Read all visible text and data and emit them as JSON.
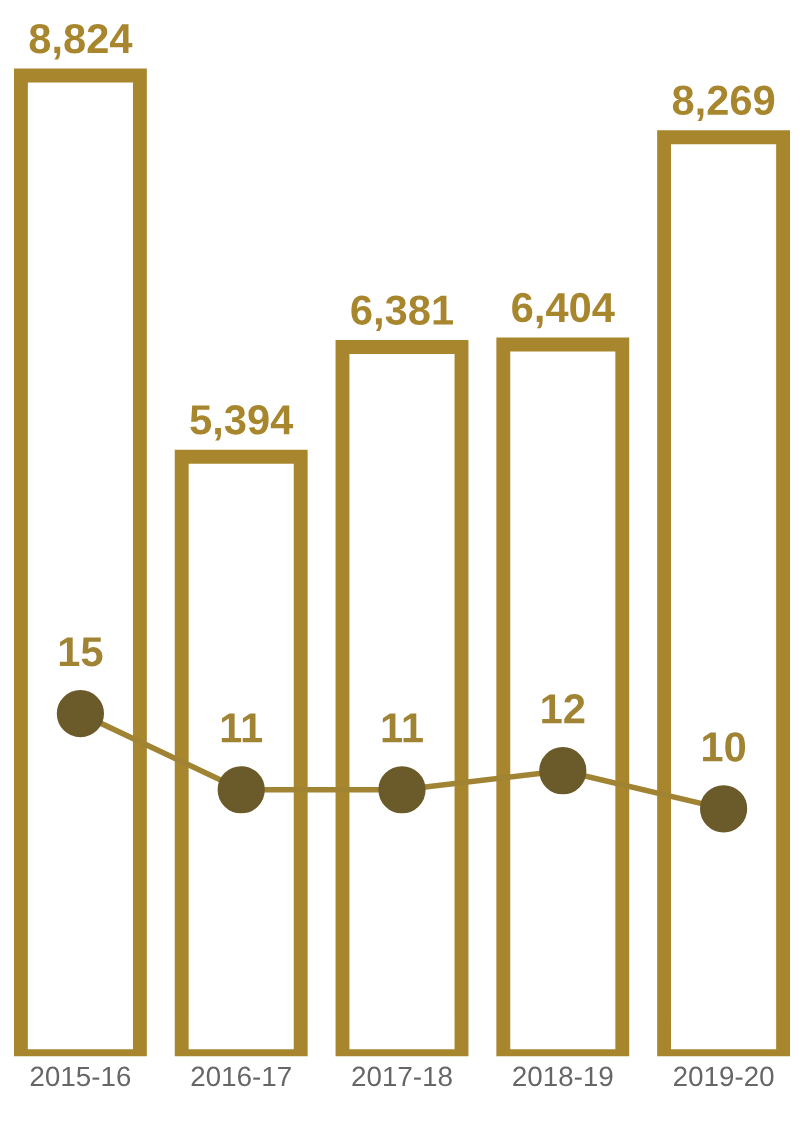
{
  "chart_data": {
    "type": "bar",
    "categories": [
      "2015-16",
      "2016-17",
      "2017-18",
      "2018-19",
      "2019-20"
    ],
    "series": [
      {
        "color": "#a8862e",
        "values": [
          8824,
          5394,
          6381,
          6404,
          8269
        ],
        "value_labels": [
          "8,824",
          "5,394",
          "6,381",
          "6,404",
          "8,269"
        ]
      },
      {
        "type": "line",
        "axis": "y2",
        "color": "#a08434",
        "values": [
          15,
          11,
          11,
          12,
          10
        ],
        "value_labels": [
          "15",
          "11",
          "11",
          "12",
          "10"
        ]
      }
    ],
    "marker": "circle",
    "tick_labels": "x"
  }
}
